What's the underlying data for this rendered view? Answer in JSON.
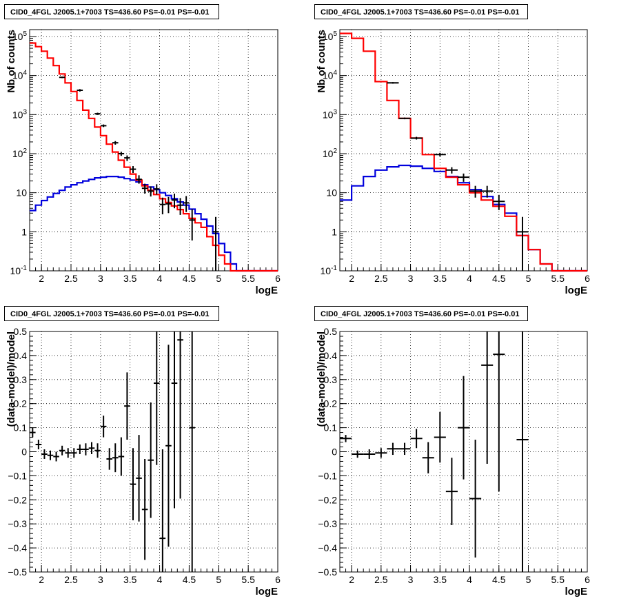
{
  "colors": {
    "data": "#000000",
    "total_model": "#ff0000",
    "source_model": "#0000dd",
    "grid": "#000000"
  },
  "chart_data": [
    {
      "id": "counts_left",
      "type": "line",
      "title": "CID0_4FGL J2005.1+7003 TS=436.60 PS=-0.01 PS=-0.01",
      "xlabel": "logE",
      "ylabel": "Nb of counts",
      "log_y": true,
      "xlim": [
        1.8,
        6.0
      ],
      "ylim": [
        0.1,
        150000
      ],
      "xticks": [
        "2",
        "2.5",
        "3",
        "3.5",
        "4",
        "4.5",
        "5",
        "5.5",
        "6"
      ],
      "yticks": [
        "10^-1",
        "1",
        "10",
        "10^2",
        "10^3",
        "10^4",
        "10^5"
      ],
      "grid": true,
      "bin_edges": [
        1.8,
        1.9,
        2.0,
        2.1,
        2.2,
        2.3,
        2.4,
        2.5,
        2.6,
        2.7,
        2.8,
        2.9,
        3.0,
        3.1,
        3.2,
        3.3,
        3.4,
        3.5,
        3.6,
        3.7,
        3.8,
        3.9,
        4.0,
        4.1,
        4.2,
        4.3,
        4.4,
        4.5,
        4.6,
        4.7,
        4.8,
        4.9,
        5.0,
        5.1,
        5.2,
        5.3,
        5.4,
        5.5,
        5.6,
        5.7,
        5.8,
        5.9,
        6.0
      ],
      "series": [
        {
          "values": [
            68000,
            55000,
            42000,
            28000,
            18000,
            11000,
            6500,
            3900,
            2300,
            1300,
            800,
            480,
            290,
            175,
            110,
            68,
            45,
            30,
            21,
            15,
            11.5,
            9,
            7,
            5.6,
            4.6,
            3.7,
            2.9,
            2.2,
            1.7,
            1.3,
            0.75,
            0.45,
            0.25,
            0.15,
            0.1,
            0.1,
            0.1,
            0.1,
            0.1,
            0.1,
            0.1,
            0.1
          ]
        },
        {
          "values": [
            3.5,
            4.8,
            6.3,
            7.8,
            9.6,
            11.5,
            14,
            16,
            18,
            20,
            22,
            24,
            25,
            26,
            26,
            25,
            23,
            21,
            19,
            16,
            14,
            12,
            10,
            8.5,
            7,
            5.8,
            4.8,
            3.8,
            2.9,
            2.1,
            1.4,
            0.9,
            0.5,
            0.3,
            0.15,
            0.1,
            0.1,
            0.1,
            0.1,
            0.1,
            0.1,
            0.1
          ]
        }
      ],
      "points": [
        {
          "x": 2.35,
          "y": 9000,
          "lo": 8600,
          "hi": 9400
        },
        {
          "x": 2.65,
          "y": 4200,
          "lo": 3900,
          "hi": 4500
        },
        {
          "x": 2.95,
          "y": 1050,
          "lo": 980,
          "hi": 1120
        },
        {
          "x": 3.05,
          "y": 520,
          "lo": 480,
          "hi": 560
        },
        {
          "x": 3.25,
          "y": 190,
          "lo": 170,
          "hi": 210
        },
        {
          "x": 3.35,
          "y": 100,
          "lo": 88,
          "hi": 112
        },
        {
          "x": 3.45,
          "y": 78,
          "lo": 65,
          "hi": 90
        },
        {
          "x": 3.55,
          "y": 40,
          "lo": 32,
          "hi": 48
        },
        {
          "x": 3.65,
          "y": 22,
          "lo": 17,
          "hi": 28
        },
        {
          "x": 3.75,
          "y": 13,
          "lo": 9.5,
          "hi": 17
        },
        {
          "x": 3.85,
          "y": 11,
          "lo": 8,
          "hi": 14.5
        },
        {
          "x": 3.95,
          "y": 12.5,
          "lo": 9,
          "hi": 16.5
        },
        {
          "x": 4.05,
          "y": 5,
          "lo": 2.8,
          "hi": 7.5
        },
        {
          "x": 4.15,
          "y": 5.2,
          "lo": 3,
          "hi": 7.8
        },
        {
          "x": 4.25,
          "y": 6.5,
          "lo": 4,
          "hi": 9.5
        },
        {
          "x": 4.35,
          "y": 4.8,
          "lo": 2.7,
          "hi": 7.3
        },
        {
          "x": 4.45,
          "y": 5.5,
          "lo": 3.2,
          "hi": 8.2
        },
        {
          "x": 4.55,
          "y": 2,
          "lo": 0.6,
          "hi": 3.8
        },
        {
          "x": 4.95,
          "y": 1,
          "lo": 0.1,
          "hi": 2.4
        }
      ]
    },
    {
      "id": "counts_right",
      "type": "line",
      "title": "CID0_4FGL J2005.1+7003 TS=436.60 PS=-0.01 PS=-0.01",
      "xlabel": "logE",
      "ylabel": "Nb of counts",
      "log_y": true,
      "xlim": [
        1.8,
        6.0
      ],
      "ylim": [
        0.1,
        150000
      ],
      "xticks": [
        "2",
        "2.5",
        "3",
        "3.5",
        "4",
        "4.5",
        "5",
        "5.5",
        "6"
      ],
      "yticks": [
        "10^-1",
        "1",
        "10",
        "10^2",
        "10^3",
        "10^4",
        "10^5"
      ],
      "grid": true,
      "bin_edges": [
        1.8,
        2.0,
        2.2,
        2.4,
        2.6,
        2.8,
        3.0,
        3.2,
        3.4,
        3.6,
        3.8,
        4.0,
        4.2,
        4.4,
        4.6,
        4.8,
        5.0,
        5.2,
        5.4,
        5.6,
        5.8,
        6.0
      ],
      "series": [
        {
          "values": [
            120000,
            90000,
            42000,
            7000,
            2300,
            800,
            250,
            95,
            42,
            25,
            16,
            10,
            6.5,
            4.5,
            2.5,
            0.8,
            0.35,
            0.15,
            0.1,
            0.1,
            0.1
          ]
        },
        {
          "values": [
            6.5,
            15,
            26,
            38,
            46,
            50,
            48,
            42,
            35,
            26,
            18,
            12,
            8,
            5,
            3,
            0.8,
            0.35,
            0.15,
            0.1,
            0.1,
            0.1
          ]
        }
      ],
      "points": [
        {
          "x": 2.7,
          "y": 6500,
          "lo": 6200,
          "hi": 6800
        },
        {
          "x": 2.9,
          "y": 800,
          "lo": 760,
          "hi": 840
        },
        {
          "x": 3.1,
          "y": 250,
          "lo": 230,
          "hi": 270
        },
        {
          "x": 3.5,
          "y": 95,
          "lo": 85,
          "hi": 105
        },
        {
          "x": 3.7,
          "y": 38,
          "lo": 31,
          "hi": 45
        },
        {
          "x": 3.9,
          "y": 25,
          "lo": 19,
          "hi": 31
        },
        {
          "x": 4.1,
          "y": 11,
          "lo": 7.5,
          "hi": 15
        },
        {
          "x": 4.3,
          "y": 11,
          "lo": 7.5,
          "hi": 15
        },
        {
          "x": 4.5,
          "y": 6,
          "lo": 3.6,
          "hi": 8.8
        },
        {
          "x": 4.9,
          "y": 1,
          "lo": 0.1,
          "hi": 2.4
        }
      ]
    },
    {
      "id": "resid_left",
      "type": "scatter",
      "title": "CID0_4FGL J2005.1+7003 TS=436.60 PS=-0.01 PS=-0.01",
      "xlabel": "logE",
      "ylabel": "(data-model)/model",
      "xlim": [
        1.8,
        6.0
      ],
      "ylim": [
        -0.5,
        0.5
      ],
      "xticks": [
        "2",
        "2.5",
        "3",
        "3.5",
        "4",
        "4.5",
        "5",
        "5.5",
        "6"
      ],
      "yticks": [
        "-0.5",
        "-0.4",
        "-0.3",
        "-0.2",
        "-0.1",
        "0",
        "0.1",
        "0.2",
        "0.3",
        "0.4",
        "0.5"
      ],
      "grid": true,
      "points": [
        {
          "x": 1.85,
          "xlo": 1.8,
          "xhi": 1.9,
          "y": 0.08,
          "err": 0.02
        },
        {
          "x": 1.95,
          "xlo": 1.9,
          "xhi": 2.0,
          "y": 0.03,
          "err": 0.02
        },
        {
          "x": 2.05,
          "xlo": 2.0,
          "xhi": 2.1,
          "y": -0.01,
          "err": 0.02
        },
        {
          "x": 2.15,
          "xlo": 2.1,
          "xhi": 2.2,
          "y": -0.015,
          "err": 0.02
        },
        {
          "x": 2.25,
          "xlo": 2.2,
          "xhi": 2.3,
          "y": -0.02,
          "err": 0.02
        },
        {
          "x": 2.35,
          "xlo": 2.3,
          "xhi": 2.4,
          "y": 0.005,
          "err": 0.02
        },
        {
          "x": 2.45,
          "xlo": 2.4,
          "xhi": 2.5,
          "y": -0.005,
          "err": 0.02
        },
        {
          "x": 2.55,
          "xlo": 2.5,
          "xhi": 2.6,
          "y": -0.005,
          "err": 0.02
        },
        {
          "x": 2.65,
          "xlo": 2.6,
          "xhi": 2.7,
          "y": 0.01,
          "err": 0.02
        },
        {
          "x": 2.75,
          "xlo": 2.7,
          "xhi": 2.8,
          "y": 0.01,
          "err": 0.025
        },
        {
          "x": 2.85,
          "xlo": 2.8,
          "xhi": 2.9,
          "y": 0.015,
          "err": 0.025
        },
        {
          "x": 2.95,
          "xlo": 2.9,
          "xhi": 3.0,
          "y": 0.005,
          "err": 0.03
        },
        {
          "x": 3.05,
          "xlo": 3.0,
          "xhi": 3.1,
          "y": 0.105,
          "err": 0.045
        },
        {
          "x": 3.15,
          "xlo": 3.1,
          "xhi": 3.2,
          "y": -0.03,
          "err": 0.045
        },
        {
          "x": 3.25,
          "xlo": 3.2,
          "xhi": 3.3,
          "y": -0.025,
          "err": 0.06
        },
        {
          "x": 3.35,
          "xlo": 3.3,
          "xhi": 3.4,
          "y": -0.02,
          "err": 0.08
        },
        {
          "x": 3.45,
          "xlo": 3.4,
          "xhi": 3.5,
          "y": 0.19,
          "err": 0.14
        },
        {
          "x": 3.55,
          "xlo": 3.5,
          "xhi": 3.6,
          "y": -0.135,
          "err": 0.15
        },
        {
          "x": 3.65,
          "xlo": 3.6,
          "xhi": 3.7,
          "y": -0.11,
          "err": 0.18
        },
        {
          "x": 3.75,
          "xlo": 3.7,
          "xhi": 3.8,
          "y": -0.24,
          "err": 0.21
        },
        {
          "x": 3.85,
          "xlo": 3.8,
          "xhi": 3.9,
          "y": -0.035,
          "err": 0.24
        },
        {
          "x": 3.95,
          "xlo": 3.9,
          "xhi": 4.0,
          "y": 0.285,
          "err": 0.34
        },
        {
          "x": 4.05,
          "xlo": 4.0,
          "xhi": 4.1,
          "y": -0.36,
          "err": 0.37
        },
        {
          "x": 4.15,
          "xlo": 4.1,
          "xhi": 4.2,
          "y": 0.025,
          "err": 0.42
        },
        {
          "x": 4.25,
          "xlo": 4.2,
          "xhi": 4.3,
          "y": 0.285,
          "err": 0.52
        },
        {
          "x": 4.35,
          "xlo": 4.3,
          "xhi": 4.4,
          "y": 0.465,
          "err": 0.66
        },
        {
          "x": 4.55,
          "xlo": 4.5,
          "xhi": 4.6,
          "y": 0.1,
          "err": 1.0
        }
      ]
    },
    {
      "id": "resid_right",
      "type": "scatter",
      "title": "CID0_4FGL J2005.1+7003 TS=436.60 PS=-0.01 PS=-0.01",
      "xlabel": "logE",
      "ylabel": "(data-model)/model",
      "xlim": [
        1.8,
        6.0
      ],
      "ylim": [
        -0.5,
        0.5
      ],
      "xticks": [
        "2",
        "2.5",
        "3",
        "3.5",
        "4",
        "4.5",
        "5",
        "5.5",
        "6"
      ],
      "yticks": [
        "-0.5",
        "-0.4",
        "-0.3",
        "-0.2",
        "-0.1",
        "0",
        "0.1",
        "0.2",
        "0.3",
        "0.4",
        "0.5"
      ],
      "grid": true,
      "points": [
        {
          "x": 1.9,
          "xlo": 1.8,
          "xhi": 2.0,
          "y": 0.055,
          "err": 0.015
        },
        {
          "x": 2.1,
          "xlo": 2.0,
          "xhi": 2.2,
          "y": -0.01,
          "err": 0.015
        },
        {
          "x": 2.3,
          "xlo": 2.2,
          "xhi": 2.4,
          "y": -0.01,
          "err": 0.02
        },
        {
          "x": 2.5,
          "xlo": 2.4,
          "xhi": 2.6,
          "y": -0.005,
          "err": 0.02
        },
        {
          "x": 2.7,
          "xlo": 2.6,
          "xhi": 2.8,
          "y": 0.012,
          "err": 0.025
        },
        {
          "x": 2.9,
          "xlo": 2.8,
          "xhi": 3.0,
          "y": 0.012,
          "err": 0.025
        },
        {
          "x": 3.1,
          "xlo": 3.0,
          "xhi": 3.2,
          "y": 0.055,
          "err": 0.04
        },
        {
          "x": 3.3,
          "xlo": 3.2,
          "xhi": 3.4,
          "y": -0.025,
          "err": 0.065
        },
        {
          "x": 3.5,
          "xlo": 3.4,
          "xhi": 3.6,
          "y": 0.06,
          "err": 0.105
        },
        {
          "x": 3.7,
          "xlo": 3.6,
          "xhi": 3.8,
          "y": -0.165,
          "err": 0.14
        },
        {
          "x": 3.9,
          "xlo": 3.8,
          "xhi": 4.0,
          "y": 0.1,
          "err": 0.215
        },
        {
          "x": 4.1,
          "xlo": 4.0,
          "xhi": 4.2,
          "y": -0.195,
          "err": 0.245
        },
        {
          "x": 4.3,
          "xlo": 4.2,
          "xhi": 4.4,
          "y": 0.36,
          "err": 0.41
        },
        {
          "x": 4.5,
          "xlo": 4.4,
          "xhi": 4.6,
          "y": 0.405,
          "err": 0.57
        },
        {
          "x": 4.9,
          "xlo": 4.8,
          "xhi": 5.0,
          "y": 0.05,
          "err": 1.0
        }
      ]
    }
  ]
}
